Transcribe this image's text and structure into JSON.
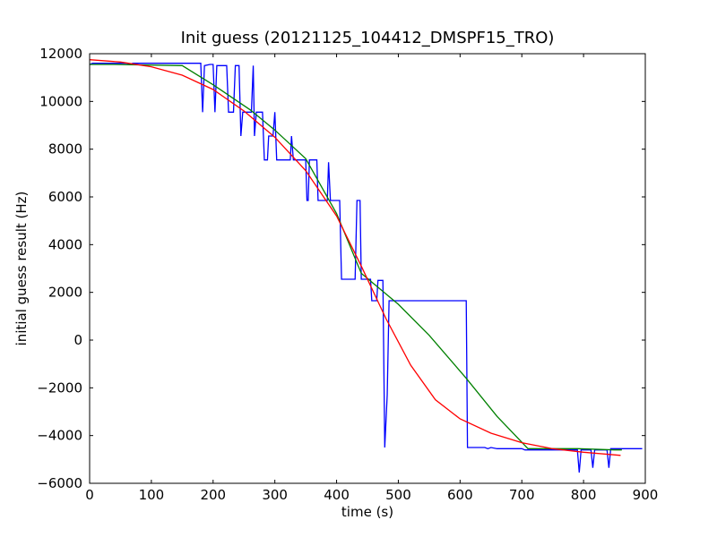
{
  "chart_data": {
    "type": "line",
    "title": "Init guess (20121125_104412_DMSPF15_TRO)",
    "xlabel": "time (s)",
    "ylabel": "initial guess result (Hz)",
    "xlim": [
      0,
      900
    ],
    "ylim": [
      -6000,
      12000
    ],
    "xticks": [
      "0",
      "100",
      "200",
      "300",
      "400",
      "500",
      "600",
      "700",
      "800",
      "900"
    ],
    "yticks": [
      "−6000",
      "−4000",
      "−2000",
      "0",
      "2000",
      "4000",
      "6000",
      "8000",
      "10000",
      "12000"
    ],
    "grid": false,
    "series": [
      {
        "color": "#0000ff",
        "points": [
          [
            0,
            11550
          ],
          [
            5,
            11600
          ],
          [
            10,
            11600
          ],
          [
            60,
            11600
          ],
          [
            65,
            11550
          ],
          [
            70,
            11600
          ],
          [
            180,
            11600
          ],
          [
            183,
            9550
          ],
          [
            186,
            11500
          ],
          [
            195,
            11550
          ],
          [
            200,
            11550
          ],
          [
            203,
            9550
          ],
          [
            206,
            11500
          ],
          [
            222,
            11500
          ],
          [
            225,
            9550
          ],
          [
            233,
            9550
          ],
          [
            236,
            11500
          ],
          [
            242,
            11500
          ],
          [
            245,
            8550
          ],
          [
            248,
            9550
          ],
          [
            262,
            9550
          ],
          [
            265,
            11500
          ],
          [
            267,
            8550
          ],
          [
            270,
            9550
          ],
          [
            280,
            9550
          ],
          [
            283,
            7550
          ],
          [
            288,
            7550
          ],
          [
            290,
            8550
          ],
          [
            297,
            8550
          ],
          [
            300,
            9550
          ],
          [
            303,
            7550
          ],
          [
            312,
            7550
          ],
          [
            315,
            7550
          ],
          [
            325,
            7550
          ],
          [
            327,
            8550
          ],
          [
            330,
            7550
          ],
          [
            350,
            7550
          ],
          [
            352,
            5850
          ],
          [
            354,
            5850
          ],
          [
            356,
            7550
          ],
          [
            368,
            7550
          ],
          [
            370,
            5850
          ],
          [
            385,
            5850
          ],
          [
            387,
            7450
          ],
          [
            390,
            5850
          ],
          [
            405,
            5850
          ],
          [
            408,
            2550
          ],
          [
            430,
            2550
          ],
          [
            433,
            5850
          ],
          [
            438,
            5850
          ],
          [
            440,
            2550
          ],
          [
            455,
            2550
          ],
          [
            457,
            1650
          ],
          [
            465,
            1650
          ],
          [
            467,
            2500
          ],
          [
            475,
            2500
          ],
          [
            478,
            -4500
          ],
          [
            482,
            -2300
          ],
          [
            485,
            1650
          ],
          [
            610,
            1650
          ],
          [
            612,
            -4500
          ],
          [
            640,
            -4500
          ],
          [
            645,
            -4550
          ],
          [
            650,
            -4500
          ],
          [
            660,
            -4550
          ],
          [
            700,
            -4550
          ],
          [
            705,
            -4600
          ],
          [
            790,
            -4600
          ],
          [
            793,
            -5550
          ],
          [
            796,
            -4600
          ],
          [
            812,
            -4600
          ],
          [
            815,
            -5350
          ],
          [
            818,
            -4600
          ],
          [
            838,
            -4600
          ],
          [
            841,
            -5350
          ],
          [
            844,
            -4550
          ],
          [
            895,
            -4550
          ]
        ]
      },
      {
        "color": "#008000",
        "points": [
          [
            0,
            11550
          ],
          [
            40,
            11550
          ],
          [
            150,
            11500
          ],
          [
            200,
            10700
          ],
          [
            260,
            9650
          ],
          [
            300,
            8800
          ],
          [
            350,
            7600
          ],
          [
            400,
            5300
          ],
          [
            440,
            2800
          ],
          [
            500,
            1500
          ],
          [
            550,
            200
          ],
          [
            610,
            -1600
          ],
          [
            660,
            -3200
          ],
          [
            710,
            -4550
          ],
          [
            790,
            -4550
          ],
          [
            850,
            -4600
          ],
          [
            862,
            -4600
          ]
        ]
      },
      {
        "color": "#ff0000",
        "points": [
          [
            0,
            11750
          ],
          [
            50,
            11650
          ],
          [
            100,
            11450
          ],
          [
            150,
            11100
          ],
          [
            200,
            10500
          ],
          [
            250,
            9600
          ],
          [
            300,
            8500
          ],
          [
            350,
            7100
          ],
          [
            400,
            5200
          ],
          [
            440,
            3100
          ],
          [
            480,
            900
          ],
          [
            520,
            -1050
          ],
          [
            560,
            -2500
          ],
          [
            600,
            -3300
          ],
          [
            650,
            -3900
          ],
          [
            700,
            -4300
          ],
          [
            750,
            -4550
          ],
          [
            800,
            -4700
          ],
          [
            860,
            -4830
          ]
        ]
      }
    ]
  }
}
